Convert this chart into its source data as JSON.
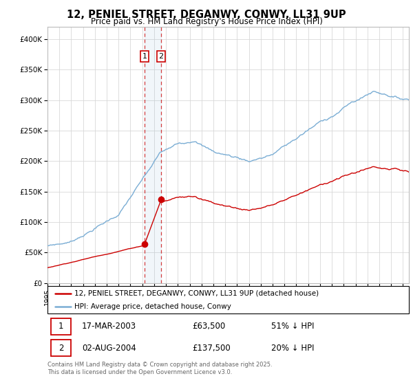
{
  "title": "12, PENIEL STREET, DEGANWY, CONWY, LL31 9UP",
  "subtitle": "Price paid vs. HM Land Registry's House Price Index (HPI)",
  "ylabel_ticks": [
    "£0",
    "£50K",
    "£100K",
    "£150K",
    "£200K",
    "£250K",
    "£300K",
    "£350K",
    "£400K"
  ],
  "ytick_values": [
    0,
    50000,
    100000,
    150000,
    200000,
    250000,
    300000,
    350000,
    400000
  ],
  "ylim": [
    0,
    420000
  ],
  "xlim": [
    1995,
    2025.5
  ],
  "t1_year": 2003.204,
  "t2_year": 2004.583,
  "t1_price": 63500,
  "t2_price": 137500,
  "transaction1": {
    "date": "17-MAR-2003",
    "price": 63500,
    "label": "1",
    "pct": "51% ↓ HPI"
  },
  "transaction2": {
    "date": "02-AUG-2004",
    "price": 137500,
    "label": "2",
    "pct": "20% ↓ HPI"
  },
  "legend_line1": "12, PENIEL STREET, DEGANWY, CONWY, LL31 9UP (detached house)",
  "legend_line2": "HPI: Average price, detached house, Conwy",
  "footer": "Contains HM Land Registry data © Crown copyright and database right 2025.\nThis data is licensed under the Open Government Licence v3.0.",
  "red_color": "#cc0000",
  "blue_color": "#7aadd4",
  "background_color": "#ffffff",
  "grid_color": "#d8d8d8"
}
